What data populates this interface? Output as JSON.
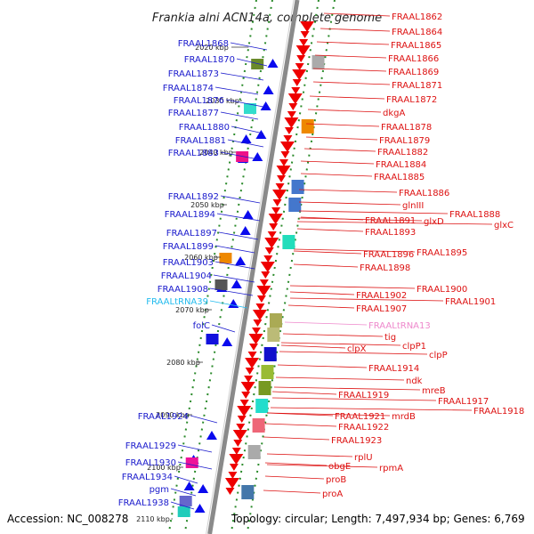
{
  "title": "Frankia alni ACN14a, complete genome",
  "footer": {
    "accession": "Accession: NC_008278",
    "summary": "Topology: circular; Length: 7,497,934 bp; Genes: 6,769"
  },
  "colors": {
    "left_label": "#1a1acc",
    "right_label": "#dd1111",
    "trna_left": "#22bbee",
    "trna_right": "#ee88cc",
    "backbone": "#8a8a8a",
    "tick": "#2a8a2a"
  },
  "kbp_ticks": [
    "2020 kbp",
    "2030 kbp",
    "2040 kbp",
    "2050 kbp",
    "2060 kbp",
    "2070 kbp",
    "2080 kbp",
    "2090 kbp",
    "2100 kbp",
    "2110 kbp"
  ],
  "left_labels": [
    "FRAAL1868",
    "FRAAL1870",
    "FRAAL1873",
    "FRAAL1874",
    "FRAAL1876",
    "FRAAL1877",
    "FRAAL1880",
    "FRAAL1881",
    "FRAAL1883",
    "FRAAL1892",
    "FRAAL1894",
    "FRAAL1897",
    "FRAAL1899",
    "FRAAL1903",
    "FRAAL1904",
    "FRAAL1908",
    "FRAALtRNA39",
    "folC",
    "FRAAL1924",
    "FRAAL1929",
    "FRAAL1930",
    "FRAAL1934",
    "pgm",
    "FRAAL1938"
  ],
  "right_labels": [
    "FRAAL1862",
    "FRAAL1864",
    "FRAAL1865",
    "FRAAL1866",
    "FRAAL1869",
    "FRAAL1871",
    "FRAAL1872",
    "dkgA",
    "FRAAL1878",
    "FRAAL1879",
    "FRAAL1882",
    "FRAAL1884",
    "FRAAL1885",
    "FRAAL1886",
    "glnIII",
    "FRAAL1888",
    "FRAAL1891",
    "glxD",
    "glxC",
    "FRAAL1893",
    "FRAAL1896",
    "FRAAL1895",
    "FRAAL1898",
    "FRAAL1900",
    "FRAAL1902",
    "FRAAL1901",
    "FRAAL1907",
    "FRAALtRNA13",
    "tig",
    "clpX",
    "clpP1",
    "clpP",
    "FRAAL1914",
    "ndk",
    "mreB",
    "FRAAL1919",
    "FRAAL1917",
    "FRAAL1918",
    "FRAAL1921",
    "mrdB",
    "FRAAL1922",
    "FRAAL1923",
    "rplU",
    "obgE",
    "rpmA",
    "proB",
    "proA"
  ]
}
